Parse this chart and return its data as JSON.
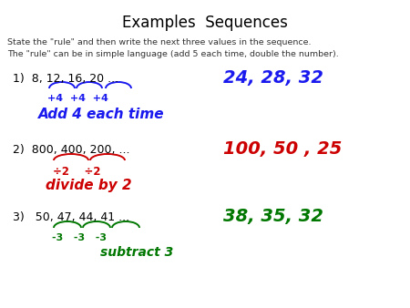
{
  "title": "Examples  Sequences",
  "subtitle_line1": "State the \"rule\" and then write the next three values in the sequence.",
  "subtitle_line2": "The \"rule\" can be in simple language (add 5 each time, double the number).",
  "bg_color": "#ffffff",
  "title_color": "#000000",
  "subtitle_color": "#333333",
  "item1_seq": "1)  8, 12, 16, 20 ...",
  "item1_ans": "24, 28, 32",
  "item1_ann1": "+4  +4  +4",
  "item1_ann2": "Add 4 each time",
  "item1_color": "#1a1aee",
  "item2_seq": "2)  800, 400, 200, ...",
  "item2_ans": "100, 50 , 25",
  "item2_ann1": "÷2    ÷2",
  "item2_ann2": "divide by 2",
  "item2_color": "#cc0000",
  "item3_seq": "3)   50, 47, 44, 41 ...",
  "item3_ans": "38, 35, 32",
  "item3_ann1": "-3   -3   -3",
  "item3_ann2": "subtract 3",
  "item3_color": "#007700"
}
